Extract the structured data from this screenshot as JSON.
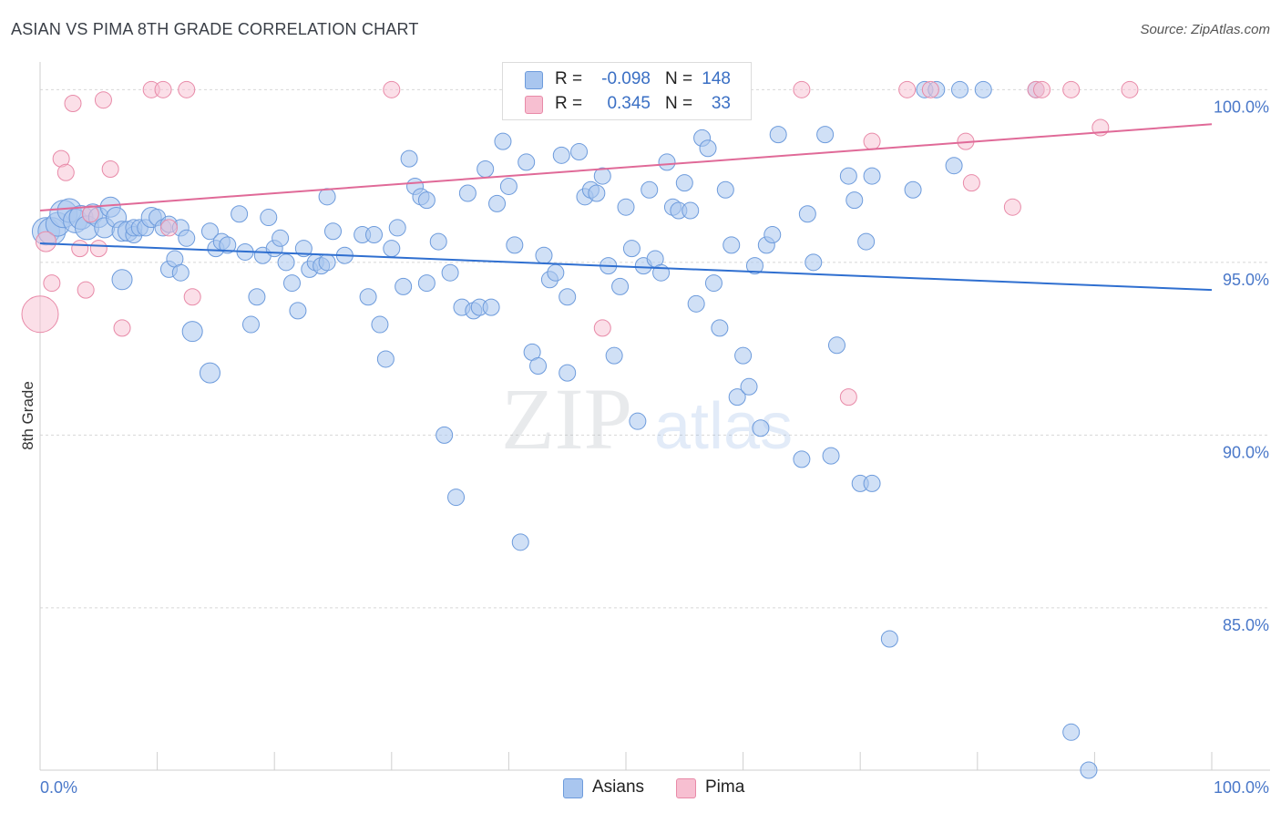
{
  "header": {
    "title": "ASIAN VS PIMA 8TH GRADE CORRELATION CHART",
    "source": "Source: ZipAtlas.com"
  },
  "watermark": {
    "zip": "ZIP",
    "atlas": "atlas"
  },
  "legend": {
    "rows": [
      {
        "r_label": "R =",
        "r_value": "-0.098",
        "n_label": "N =",
        "n_value": "148",
        "color": "#a9c6ef",
        "border": "#6d9bdc"
      },
      {
        "r_label": "R =",
        "r_value": "0.345",
        "n_label": "N =",
        "n_value": "33",
        "color": "#f7bfd1",
        "border": "#e88aa8"
      }
    ]
  },
  "bottom_legend": [
    {
      "label": "Asians",
      "color": "#a9c6ef",
      "border": "#6d9bdc"
    },
    {
      "label": "Pima",
      "color": "#f7bfd1",
      "border": "#e88aa8"
    }
  ],
  "chart_data": {
    "type": "scatter",
    "title": "ASIAN VS PIMA 8TH GRADE CORRELATION CHART",
    "ylabel": "8th Grade",
    "xlabel": "",
    "xlim": [
      0,
      100
    ],
    "ylim": [
      80.3,
      100.8
    ],
    "x_tick_labels": [
      "0.0%",
      "100.0%"
    ],
    "y_ticks": [
      85,
      90,
      95,
      100
    ],
    "y_tick_labels": [
      "85.0%",
      "90.0%",
      "95.0%",
      "100.0%"
    ],
    "grid": true,
    "legend_position": "top-center",
    "series": [
      {
        "name": "Asians",
        "color": "#a9c6ef",
        "stroke": "#6d9bdc",
        "trend": {
          "x": [
            0,
            100
          ],
          "y": [
            95.55,
            94.2
          ],
          "color": "#2f6fd0"
        },
        "points": [
          [
            0.5,
            95.9,
            3
          ],
          [
            1.0,
            95.9,
            3
          ],
          [
            1.5,
            96.1,
            2
          ],
          [
            2.0,
            96.4,
            3
          ],
          [
            2.5,
            96.5,
            2
          ],
          [
            3.0,
            96.2,
            2
          ],
          [
            3.5,
            96.3,
            2
          ],
          [
            4.0,
            96.0,
            2
          ],
          [
            4.5,
            96.4,
            1
          ],
          [
            5.0,
            96.3,
            1
          ],
          [
            5.5,
            96.0,
            1
          ],
          [
            6.0,
            96.6,
            1
          ],
          [
            6.5,
            96.3,
            1
          ],
          [
            7.0,
            95.9,
            1
          ],
          [
            7.0,
            94.5,
            1
          ],
          [
            7.5,
            95.9,
            1
          ],
          [
            8.0,
            95.8,
            0
          ],
          [
            8.0,
            96.0,
            0
          ],
          [
            8.5,
            96.0,
            0
          ],
          [
            9.0,
            96.0,
            0
          ],
          [
            9.5,
            96.3,
            1
          ],
          [
            10.0,
            96.3,
            0
          ],
          [
            10.5,
            96.0,
            0
          ],
          [
            11.0,
            96.1,
            0
          ],
          [
            11.0,
            94.8,
            0
          ],
          [
            11.5,
            95.1,
            0
          ],
          [
            12.0,
            96.0,
            0
          ],
          [
            12.0,
            94.7,
            0
          ],
          [
            12.5,
            95.7,
            0
          ],
          [
            13.0,
            93.0,
            1
          ],
          [
            14.5,
            91.8,
            1
          ],
          [
            14.5,
            95.9,
            0
          ],
          [
            15.0,
            95.4,
            0
          ],
          [
            15.5,
            95.6,
            0
          ],
          [
            16.0,
            95.5,
            0
          ],
          [
            17.0,
            96.4,
            0
          ],
          [
            17.5,
            95.3,
            0
          ],
          [
            18.0,
            93.2,
            0
          ],
          [
            18.5,
            94.0,
            0
          ],
          [
            19.0,
            95.2,
            0
          ],
          [
            19.5,
            96.3,
            0
          ],
          [
            20.0,
            95.4,
            0
          ],
          [
            20.5,
            95.7,
            0
          ],
          [
            21.0,
            95.0,
            0
          ],
          [
            21.5,
            94.4,
            0
          ],
          [
            22.0,
            93.6,
            0
          ],
          [
            22.5,
            95.4,
            0
          ],
          [
            23.0,
            94.8,
            0
          ],
          [
            23.5,
            95.0,
            0
          ],
          [
            24.0,
            94.9,
            0
          ],
          [
            24.5,
            95.0,
            0
          ],
          [
            24.5,
            96.9,
            0
          ],
          [
            25.0,
            95.9,
            0
          ],
          [
            26.0,
            95.2,
            0
          ],
          [
            27.5,
            95.8,
            0
          ],
          [
            28.0,
            94.0,
            0
          ],
          [
            28.5,
            95.8,
            0
          ],
          [
            29.0,
            93.2,
            0
          ],
          [
            29.5,
            92.2,
            0
          ],
          [
            30.0,
            95.4,
            0
          ],
          [
            30.5,
            96.0,
            0
          ],
          [
            31.0,
            94.3,
            0
          ],
          [
            31.5,
            98.0,
            0
          ],
          [
            32.0,
            97.2,
            0
          ],
          [
            32.5,
            96.9,
            0
          ],
          [
            33.0,
            96.8,
            0
          ],
          [
            33.0,
            94.4,
            0
          ],
          [
            34.0,
            95.6,
            0
          ],
          [
            34.5,
            90.0,
            0
          ],
          [
            35.0,
            94.7,
            0
          ],
          [
            35.5,
            88.2,
            0
          ],
          [
            36.0,
            93.7,
            0
          ],
          [
            36.5,
            97.0,
            0
          ],
          [
            37.0,
            93.6,
            0
          ],
          [
            37.5,
            93.7,
            0
          ],
          [
            38.0,
            97.7,
            0
          ],
          [
            38.5,
            93.7,
            0
          ],
          [
            39.0,
            96.7,
            0
          ],
          [
            39.5,
            98.5,
            0
          ],
          [
            40.0,
            97.2,
            0
          ],
          [
            40.5,
            95.5,
            0
          ],
          [
            41.0,
            86.9,
            0
          ],
          [
            41.5,
            97.9,
            0
          ],
          [
            42.0,
            92.4,
            0
          ],
          [
            42.5,
            92.0,
            0
          ],
          [
            43.0,
            95.2,
            0
          ],
          [
            43.5,
            94.5,
            0
          ],
          [
            44.0,
            94.7,
            0
          ],
          [
            44.5,
            98.1,
            0
          ],
          [
            45.0,
            94.0,
            0
          ],
          [
            45.0,
            91.8,
            0
          ],
          [
            46.0,
            98.2,
            0
          ],
          [
            46.5,
            96.9,
            0
          ],
          [
            47.0,
            97.1,
            0
          ],
          [
            47.5,
            97.0,
            0
          ],
          [
            48.0,
            97.5,
            0
          ],
          [
            48.5,
            94.9,
            0
          ],
          [
            49.0,
            92.3,
            0
          ],
          [
            49.5,
            94.3,
            0
          ],
          [
            50.0,
            96.6,
            0
          ],
          [
            50.5,
            95.4,
            0
          ],
          [
            51.0,
            90.4,
            0
          ],
          [
            51.5,
            94.9,
            0
          ],
          [
            52.0,
            97.1,
            0
          ],
          [
            52.5,
            95.1,
            0
          ],
          [
            53.0,
            94.7,
            0
          ],
          [
            53.5,
            97.9,
            0
          ],
          [
            54.0,
            96.6,
            0
          ],
          [
            54.5,
            96.5,
            0
          ],
          [
            55.0,
            97.3,
            0
          ],
          [
            55.5,
            96.5,
            0
          ],
          [
            56.0,
            93.8,
            0
          ],
          [
            56.5,
            98.6,
            0
          ],
          [
            57.0,
            98.3,
            0
          ],
          [
            57.5,
            94.4,
            0
          ],
          [
            58.0,
            93.1,
            0
          ],
          [
            58.5,
            97.1,
            0
          ],
          [
            59.0,
            95.5,
            0
          ],
          [
            59.5,
            91.1,
            0
          ],
          [
            60.0,
            92.3,
            0
          ],
          [
            60.5,
            91.4,
            0
          ],
          [
            61.0,
            94.9,
            0
          ],
          [
            61.5,
            90.2,
            0
          ],
          [
            62.0,
            95.5,
            0
          ],
          [
            62.5,
            95.8,
            0
          ],
          [
            63.0,
            98.7,
            0
          ],
          [
            65.0,
            89.3,
            0
          ],
          [
            65.5,
            96.4,
            0
          ],
          [
            66.0,
            95.0,
            0
          ],
          [
            67.0,
            98.7,
            0
          ],
          [
            67.5,
            89.4,
            0
          ],
          [
            68.0,
            92.6,
            0
          ],
          [
            69.0,
            97.5,
            0
          ],
          [
            69.5,
            96.8,
            0
          ],
          [
            70.0,
            88.6,
            0
          ],
          [
            70.5,
            95.6,
            0
          ],
          [
            71.0,
            97.5,
            0
          ],
          [
            71.0,
            88.6,
            0
          ],
          [
            72.5,
            84.1,
            0
          ],
          [
            74.5,
            97.1,
            0
          ],
          [
            75.5,
            100.0,
            0
          ],
          [
            76.5,
            100.0,
            0
          ],
          [
            78.0,
            97.8,
            0
          ],
          [
            78.5,
            100.0,
            0
          ],
          [
            80.5,
            100.0,
            0
          ],
          [
            85.0,
            100.0,
            0
          ],
          [
            88.0,
            81.4,
            0
          ],
          [
            89.5,
            80.3,
            0
          ]
        ]
      },
      {
        "name": "Pima",
        "color": "#f7bfd1",
        "stroke": "#e88aa8",
        "trend": {
          "x": [
            0,
            100
          ],
          "y": [
            96.5,
            99.0
          ],
          "color": "#e06a98"
        },
        "points": [
          [
            0.0,
            93.5,
            4
          ],
          [
            0.5,
            95.6,
            1
          ],
          [
            1.0,
            94.4,
            0
          ],
          [
            1.8,
            98.0,
            0
          ],
          [
            2.2,
            97.6,
            0
          ],
          [
            2.8,
            99.6,
            0
          ],
          [
            3.4,
            95.4,
            0
          ],
          [
            3.9,
            94.2,
            0
          ],
          [
            4.3,
            96.4,
            0
          ],
          [
            5.0,
            95.4,
            0
          ],
          [
            5.4,
            99.7,
            0
          ],
          [
            6.0,
            97.7,
            0
          ],
          [
            7.0,
            93.1,
            0
          ],
          [
            9.5,
            100.0,
            0
          ],
          [
            10.5,
            100.0,
            0
          ],
          [
            11.0,
            96.0,
            0
          ],
          [
            12.5,
            100.0,
            0
          ],
          [
            13.0,
            94.0,
            0
          ],
          [
            30.0,
            100.0,
            0
          ],
          [
            48.0,
            93.1,
            0
          ],
          [
            65.0,
            100.0,
            0
          ],
          [
            69.0,
            91.1,
            0
          ],
          [
            71.0,
            98.5,
            0
          ],
          [
            74.0,
            100.0,
            0
          ],
          [
            76.0,
            100.0,
            0
          ],
          [
            79.0,
            98.5,
            0
          ],
          [
            79.5,
            97.3,
            0
          ],
          [
            83.0,
            96.6,
            0
          ],
          [
            85.0,
            100.0,
            0
          ],
          [
            85.5,
            100.0,
            0
          ],
          [
            88.0,
            100.0,
            0
          ],
          [
            90.5,
            98.9,
            0
          ],
          [
            93.0,
            100.0,
            0
          ]
        ]
      }
    ]
  }
}
